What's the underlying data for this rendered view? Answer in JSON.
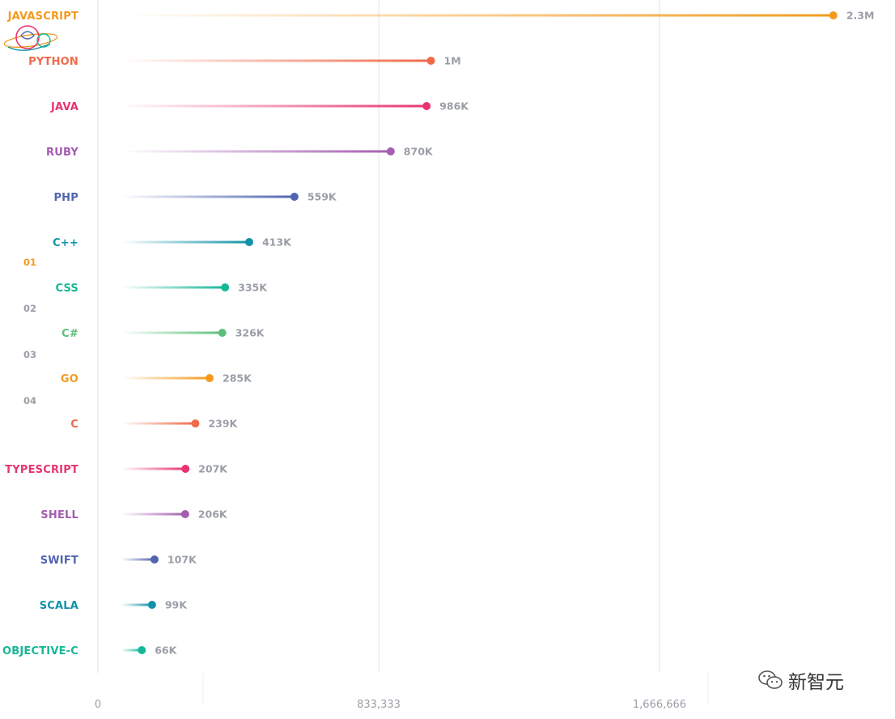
{
  "chart_data": {
    "type": "bar",
    "orientation": "horizontal",
    "style": "lollipop",
    "categories": [
      "JAVASCRIPT",
      "PYTHON",
      "JAVA",
      "RUBY",
      "PHP",
      "C++",
      "CSS",
      "C#",
      "GO",
      "C",
      "TYPESCRIPT",
      "SHELL",
      "SWIFT",
      "SCALA",
      "OBJECTIVE-C"
    ],
    "values": [
      2300000,
      1000000,
      986000,
      870000,
      559000,
      413000,
      335000,
      326000,
      285000,
      239000,
      207000,
      206000,
      107000,
      99000,
      66000
    ],
    "value_labels": [
      "2.3M",
      "1M",
      "986K",
      "870K",
      "559K",
      "413K",
      "335K",
      "326K",
      "285K",
      "239K",
      "207K",
      "206K",
      "107K",
      "99K",
      "66K"
    ],
    "colors": [
      "#f39a1e",
      "#f06a4a",
      "#e8346f",
      "#a45db0",
      "#5065b0",
      "#1192a8",
      "#15b896",
      "#5cbf7c",
      "#f39a1e",
      "#f06a4a",
      "#e8346f",
      "#a45db0",
      "#5065b0",
      "#1192a8",
      "#15b896"
    ],
    "x_ticks": [
      "0",
      "833,333",
      "1,666,666"
    ],
    "xlim": [
      0,
      2500000
    ],
    "grid": true,
    "side_numbers": [
      {
        "label": "01",
        "color": "#f39a1e"
      },
      {
        "label": "02",
        "color": "#9a9ea6"
      },
      {
        "label": "03",
        "color": "#9a9ea6"
      },
      {
        "label": "04",
        "color": "#9a9ea6"
      }
    ],
    "title": "",
    "xlabel": "",
    "ylabel": ""
  },
  "watermark": {
    "text": "新智元",
    "icon": "wechat-icon"
  },
  "logo": {
    "icon": "astronaut-logo-icon"
  }
}
